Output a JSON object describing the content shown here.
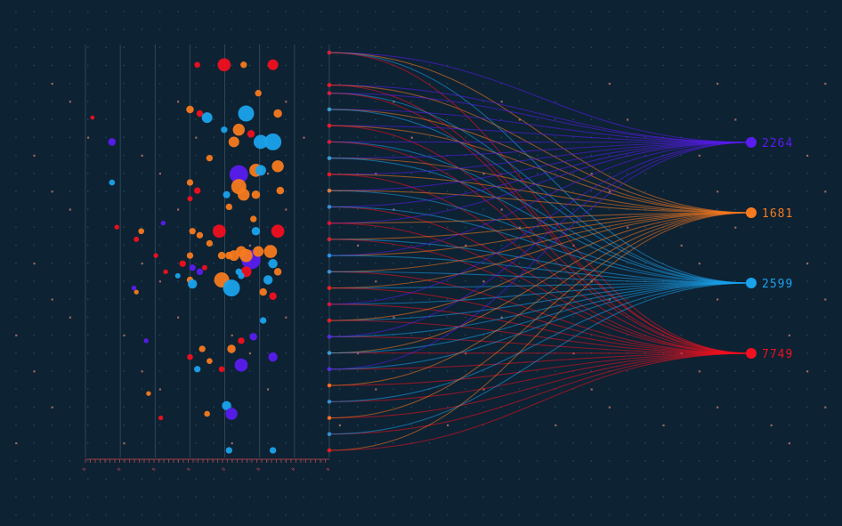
{
  "chart_data": {
    "type": "scatter",
    "title": "",
    "xlabel": "",
    "ylabel": "",
    "colors": {
      "background": "#0d2233",
      "grid_dot": "#31536a",
      "grid_dot_accent": "#c2776f",
      "axis_line": "#3b5568",
      "tick": "#d04a55",
      "purple": "#5a1cf0",
      "orange": "#f77a1f",
      "blue": "#1aa3ec",
      "red": "#f0101f"
    },
    "targets": [
      {
        "label": "2264",
        "color": "purple"
      },
      {
        "label": "1681",
        "color": "orange"
      },
      {
        "label": "2599",
        "color": "blue"
      },
      {
        "label": "7749",
        "color": "red"
      }
    ],
    "axis_ticks": [
      "0",
      "0",
      "0",
      "0",
      "0",
      "0",
      "0",
      "0"
    ],
    "points": [
      {
        "x": 0.66,
        "y": 0.05,
        "v": 6,
        "c": "red"
      },
      {
        "x": 0.86,
        "y": 0.05,
        "v": 4,
        "c": "red"
      },
      {
        "x": 0.74,
        "y": 0.05,
        "v": 1.5,
        "c": "orange"
      },
      {
        "x": 0.55,
        "y": 0.05,
        "v": 1.2,
        "c": "red"
      },
      {
        "x": 0.8,
        "y": 0.12,
        "v": 1.5,
        "c": "orange"
      },
      {
        "x": 0.75,
        "y": 0.17,
        "v": 9,
        "c": "blue"
      },
      {
        "x": 0.88,
        "y": 0.17,
        "v": 2.5,
        "c": "orange"
      },
      {
        "x": 0.52,
        "y": 0.16,
        "v": 2,
        "c": "orange"
      },
      {
        "x": 0.56,
        "y": 0.17,
        "v": 1.5,
        "c": "red"
      },
      {
        "x": 0.59,
        "y": 0.18,
        "v": 4,
        "c": "blue"
      },
      {
        "x": 0.72,
        "y": 0.21,
        "v": 5,
        "c": "orange"
      },
      {
        "x": 0.66,
        "y": 0.21,
        "v": 1.5,
        "c": "blue"
      },
      {
        "x": 0.81,
        "y": 0.24,
        "v": 7,
        "c": "blue"
      },
      {
        "x": 0.86,
        "y": 0.24,
        "v": 10,
        "c": "blue"
      },
      {
        "x": 0.7,
        "y": 0.24,
        "v": 4,
        "c": "orange"
      },
      {
        "x": 0.77,
        "y": 0.22,
        "v": 2,
        "c": "red"
      },
      {
        "x": 0.6,
        "y": 0.28,
        "v": 1.5,
        "c": "orange"
      },
      {
        "x": 0.2,
        "y": 0.24,
        "v": 2,
        "c": "purple"
      },
      {
        "x": 0.12,
        "y": 0.18,
        "v": 0.6,
        "c": "red"
      },
      {
        "x": 0.88,
        "y": 0.3,
        "v": 5,
        "c": "orange"
      },
      {
        "x": 0.72,
        "y": 0.32,
        "v": 12,
        "c": "purple"
      },
      {
        "x": 0.79,
        "y": 0.31,
        "v": 6,
        "c": "orange"
      },
      {
        "x": 0.81,
        "y": 0.31,
        "v": 4,
        "c": "blue"
      },
      {
        "x": 0.72,
        "y": 0.35,
        "v": 8,
        "c": "orange"
      },
      {
        "x": 0.74,
        "y": 0.37,
        "v": 5,
        "c": "orange"
      },
      {
        "x": 0.79,
        "y": 0.37,
        "v": 2.5,
        "c": "orange"
      },
      {
        "x": 0.89,
        "y": 0.36,
        "v": 2,
        "c": "orange"
      },
      {
        "x": 0.67,
        "y": 0.37,
        "v": 1.8,
        "c": "blue"
      },
      {
        "x": 0.52,
        "y": 0.34,
        "v": 1.5,
        "c": "orange"
      },
      {
        "x": 0.55,
        "y": 0.36,
        "v": 1.5,
        "c": "red"
      },
      {
        "x": 0.2,
        "y": 0.34,
        "v": 1.2,
        "c": "blue"
      },
      {
        "x": 0.68,
        "y": 0.4,
        "v": 1.5,
        "c": "orange"
      },
      {
        "x": 0.52,
        "y": 0.38,
        "v": 1,
        "c": "red"
      },
      {
        "x": 0.64,
        "y": 0.46,
        "v": 6,
        "c": "red"
      },
      {
        "x": 0.88,
        "y": 0.46,
        "v": 6,
        "c": "red"
      },
      {
        "x": 0.79,
        "y": 0.46,
        "v": 2.5,
        "c": "blue"
      },
      {
        "x": 0.78,
        "y": 0.43,
        "v": 1.5,
        "c": "orange"
      },
      {
        "x": 0.53,
        "y": 0.46,
        "v": 1.5,
        "c": "orange"
      },
      {
        "x": 0.56,
        "y": 0.47,
        "v": 1.5,
        "c": "orange"
      },
      {
        "x": 0.32,
        "y": 0.46,
        "v": 1.2,
        "c": "orange"
      },
      {
        "x": 0.3,
        "y": 0.48,
        "v": 1,
        "c": "red"
      },
      {
        "x": 0.22,
        "y": 0.45,
        "v": 0.8,
        "c": "red"
      },
      {
        "x": 0.77,
        "y": 0.53,
        "v": 13,
        "c": "purple"
      },
      {
        "x": 0.7,
        "y": 0.52,
        "v": 4,
        "c": "orange"
      },
      {
        "x": 0.73,
        "y": 0.51,
        "v": 4,
        "c": "orange"
      },
      {
        "x": 0.75,
        "y": 0.52,
        "v": 6,
        "c": "orange"
      },
      {
        "x": 0.8,
        "y": 0.51,
        "v": 4,
        "c": "orange"
      },
      {
        "x": 0.85,
        "y": 0.51,
        "v": 6,
        "c": "orange"
      },
      {
        "x": 0.86,
        "y": 0.54,
        "v": 3,
        "c": "blue"
      },
      {
        "x": 0.75,
        "y": 0.56,
        "v": 4,
        "c": "red"
      },
      {
        "x": 0.72,
        "y": 0.56,
        "v": 1.5,
        "c": "blue"
      },
      {
        "x": 0.65,
        "y": 0.52,
        "v": 2,
        "c": "orange"
      },
      {
        "x": 0.68,
        "y": 0.52,
        "v": 2,
        "c": "orange"
      },
      {
        "x": 0.52,
        "y": 0.52,
        "v": 1.5,
        "c": "orange"
      },
      {
        "x": 0.53,
        "y": 0.55,
        "v": 1.5,
        "c": "purple"
      },
      {
        "x": 0.49,
        "y": 0.54,
        "v": 1.5,
        "c": "red"
      },
      {
        "x": 0.6,
        "y": 0.49,
        "v": 1.5,
        "c": "orange"
      },
      {
        "x": 0.56,
        "y": 0.56,
        "v": 1.5,
        "c": "purple"
      },
      {
        "x": 0.58,
        "y": 0.55,
        "v": 1,
        "c": "red"
      },
      {
        "x": 0.65,
        "y": 0.58,
        "v": 8,
        "c": "orange"
      },
      {
        "x": 0.69,
        "y": 0.6,
        "v": 10,
        "c": "blue"
      },
      {
        "x": 0.52,
        "y": 0.58,
        "v": 1.5,
        "c": "orange"
      },
      {
        "x": 0.53,
        "y": 0.59,
        "v": 3,
        "c": "blue"
      },
      {
        "x": 0.84,
        "y": 0.58,
        "v": 3,
        "c": "blue"
      },
      {
        "x": 0.88,
        "y": 0.56,
        "v": 2,
        "c": "orange"
      },
      {
        "x": 0.86,
        "y": 0.62,
        "v": 2,
        "c": "red"
      },
      {
        "x": 0.82,
        "y": 0.61,
        "v": 2,
        "c": "orange"
      },
      {
        "x": 0.73,
        "y": 0.57,
        "v": 1.5,
        "c": "blue"
      },
      {
        "x": 0.47,
        "y": 0.57,
        "v": 1,
        "c": "blue"
      },
      {
        "x": 0.42,
        "y": 0.56,
        "v": 0.8,
        "c": "red"
      },
      {
        "x": 0.29,
        "y": 0.6,
        "v": 0.8,
        "c": "purple"
      },
      {
        "x": 0.3,
        "y": 0.61,
        "v": 0.8,
        "c": "orange"
      },
      {
        "x": 0.38,
        "y": 0.52,
        "v": 0.8,
        "c": "red"
      },
      {
        "x": 0.41,
        "y": 0.44,
        "v": 0.8,
        "c": "purple"
      },
      {
        "x": 0.82,
        "y": 0.68,
        "v": 1.5,
        "c": "blue"
      },
      {
        "x": 0.78,
        "y": 0.72,
        "v": 2,
        "c": "purple"
      },
      {
        "x": 0.73,
        "y": 0.73,
        "v": 1.5,
        "c": "red"
      },
      {
        "x": 0.69,
        "y": 0.75,
        "v": 2.5,
        "c": "orange"
      },
      {
        "x": 0.57,
        "y": 0.75,
        "v": 1.5,
        "c": "orange"
      },
      {
        "x": 0.55,
        "y": 0.8,
        "v": 1.5,
        "c": "blue"
      },
      {
        "x": 0.52,
        "y": 0.77,
        "v": 1.2,
        "c": "red"
      },
      {
        "x": 0.6,
        "y": 0.78,
        "v": 1.2,
        "c": "orange"
      },
      {
        "x": 0.73,
        "y": 0.79,
        "v": 6,
        "c": "purple"
      },
      {
        "x": 0.86,
        "y": 0.77,
        "v": 3,
        "c": "purple"
      },
      {
        "x": 0.65,
        "y": 0.8,
        "v": 1.2,
        "c": "red"
      },
      {
        "x": 0.67,
        "y": 0.89,
        "v": 3,
        "c": "blue"
      },
      {
        "x": 0.69,
        "y": 0.91,
        "v": 5,
        "c": "purple"
      },
      {
        "x": 0.59,
        "y": 0.91,
        "v": 1.2,
        "c": "orange"
      },
      {
        "x": 0.4,
        "y": 0.92,
        "v": 0.8,
        "c": "red"
      },
      {
        "x": 0.68,
        "y": 1.0,
        "v": 1.5,
        "c": "blue"
      },
      {
        "x": 0.86,
        "y": 1.0,
        "v": 1.5,
        "c": "blue"
      },
      {
        "x": 0.34,
        "y": 0.73,
        "v": 0.8,
        "c": "purple"
      },
      {
        "x": 0.35,
        "y": 0.86,
        "v": 0.8,
        "c": "orange"
      }
    ],
    "links": [
      {
        "y": 0.02,
        "c": "purple"
      },
      {
        "y": 0.02,
        "c": "orange"
      },
      {
        "y": 0.02,
        "c": "blue"
      },
      {
        "y": 0.02,
        "c": "red"
      },
      {
        "y": 0.1,
        "c": "purple"
      },
      {
        "y": 0.1,
        "c": "orange"
      },
      {
        "y": 0.1,
        "c": "red"
      },
      {
        "y": 0.12,
        "c": "purple"
      },
      {
        "y": 0.12,
        "c": "blue"
      },
      {
        "y": 0.12,
        "c": "red"
      },
      {
        "y": 0.16,
        "c": "purple"
      },
      {
        "y": 0.16,
        "c": "orange"
      },
      {
        "y": 0.16,
        "c": "blue"
      },
      {
        "y": 0.2,
        "c": "purple"
      },
      {
        "y": 0.2,
        "c": "orange"
      },
      {
        "y": 0.2,
        "c": "red"
      },
      {
        "y": 0.24,
        "c": "purple"
      },
      {
        "y": 0.24,
        "c": "blue"
      },
      {
        "y": 0.24,
        "c": "red"
      },
      {
        "y": 0.28,
        "c": "purple"
      },
      {
        "y": 0.28,
        "c": "orange"
      },
      {
        "y": 0.28,
        "c": "blue"
      },
      {
        "y": 0.32,
        "c": "purple"
      },
      {
        "y": 0.32,
        "c": "orange"
      },
      {
        "y": 0.32,
        "c": "red"
      },
      {
        "y": 0.36,
        "c": "purple"
      },
      {
        "y": 0.36,
        "c": "blue"
      },
      {
        "y": 0.36,
        "c": "orange"
      },
      {
        "y": 0.4,
        "c": "purple"
      },
      {
        "y": 0.4,
        "c": "red"
      },
      {
        "y": 0.4,
        "c": "blue"
      },
      {
        "y": 0.44,
        "c": "orange"
      },
      {
        "y": 0.44,
        "c": "purple"
      },
      {
        "y": 0.44,
        "c": "red"
      },
      {
        "y": 0.48,
        "c": "orange"
      },
      {
        "y": 0.48,
        "c": "blue"
      },
      {
        "y": 0.48,
        "c": "red"
      },
      {
        "y": 0.52,
        "c": "orange"
      },
      {
        "y": 0.52,
        "c": "purple"
      },
      {
        "y": 0.52,
        "c": "blue"
      },
      {
        "y": 0.56,
        "c": "orange"
      },
      {
        "y": 0.56,
        "c": "red"
      },
      {
        "y": 0.56,
        "c": "blue"
      },
      {
        "y": 0.6,
        "c": "blue"
      },
      {
        "y": 0.6,
        "c": "orange"
      },
      {
        "y": 0.6,
        "c": "red"
      },
      {
        "y": 0.64,
        "c": "blue"
      },
      {
        "y": 0.64,
        "c": "purple"
      },
      {
        "y": 0.64,
        "c": "red"
      },
      {
        "y": 0.68,
        "c": "blue"
      },
      {
        "y": 0.68,
        "c": "orange"
      },
      {
        "y": 0.68,
        "c": "red"
      },
      {
        "y": 0.72,
        "c": "red"
      },
      {
        "y": 0.72,
        "c": "blue"
      },
      {
        "y": 0.72,
        "c": "purple"
      },
      {
        "y": 0.76,
        "c": "red"
      },
      {
        "y": 0.76,
        "c": "orange"
      },
      {
        "y": 0.76,
        "c": "blue"
      },
      {
        "y": 0.8,
        "c": "red"
      },
      {
        "y": 0.8,
        "c": "blue"
      },
      {
        "y": 0.8,
        "c": "purple"
      },
      {
        "y": 0.84,
        "c": "red"
      },
      {
        "y": 0.84,
        "c": "orange"
      },
      {
        "y": 0.88,
        "c": "red"
      },
      {
        "y": 0.88,
        "c": "blue"
      },
      {
        "y": 0.92,
        "c": "red"
      },
      {
        "y": 0.92,
        "c": "orange"
      },
      {
        "y": 0.96,
        "c": "red"
      },
      {
        "y": 0.96,
        "c": "blue"
      },
      {
        "y": 1.0,
        "c": "orange"
      },
      {
        "y": 1.0,
        "c": "red"
      }
    ]
  }
}
